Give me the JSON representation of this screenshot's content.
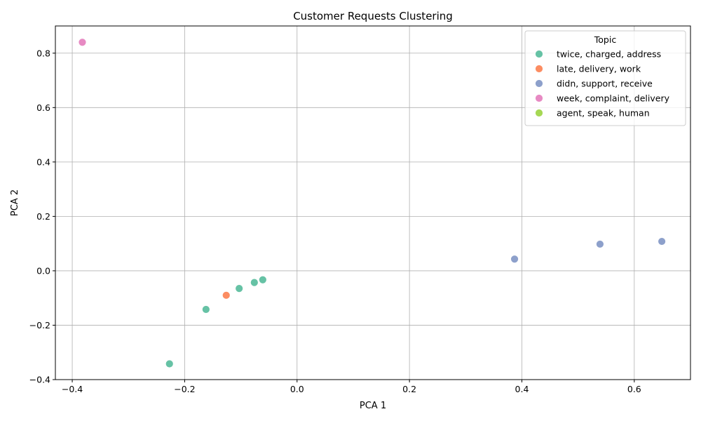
{
  "chart_data": {
    "type": "scatter",
    "title": "Customer Requests Clustering",
    "xlabel": "PCA 1",
    "ylabel": "PCA 2",
    "xlim": [
      -0.43,
      0.7
    ],
    "ylim": [
      -0.4,
      0.9
    ],
    "xticks": [
      -0.4,
      -0.2,
      0.0,
      0.2,
      0.4,
      0.6
    ],
    "xtick_labels": [
      "−0.4",
      "−0.2",
      "0.0",
      "0.2",
      "0.4",
      "0.6"
    ],
    "yticks": [
      -0.4,
      -0.2,
      0.0,
      0.2,
      0.4,
      0.6,
      0.8
    ],
    "ytick_labels": [
      "−0.4",
      "−0.2",
      "0.0",
      "0.2",
      "0.4",
      "0.6",
      "0.8"
    ],
    "grid": true,
    "legend": {
      "title": "Topic",
      "position": "top-right"
    },
    "series": [
      {
        "name": "twice, charged, address",
        "color": "#66c2a5",
        "points": [
          {
            "x": -0.061,
            "y": -0.033
          },
          {
            "x": -0.076,
            "y": -0.043
          },
          {
            "x": -0.103,
            "y": -0.065
          },
          {
            "x": -0.162,
            "y": -0.142
          },
          {
            "x": -0.227,
            "y": -0.342
          }
        ]
      },
      {
        "name": "late, delivery, work",
        "color": "#fc8d62",
        "points": [
          {
            "x": -0.126,
            "y": -0.09
          }
        ]
      },
      {
        "name": "didn, support, receive",
        "color": "#8da0cb",
        "points": [
          {
            "x": 0.387,
            "y": 0.043
          },
          {
            "x": 0.539,
            "y": 0.098
          },
          {
            "x": 0.649,
            "y": 0.108
          }
        ]
      },
      {
        "name": "week, complaint, delivery",
        "color": "#e78ac3",
        "points": [
          {
            "x": -0.382,
            "y": 0.84
          }
        ]
      },
      {
        "name": "agent, speak, human",
        "color": "#a6d854",
        "points": []
      }
    ]
  }
}
